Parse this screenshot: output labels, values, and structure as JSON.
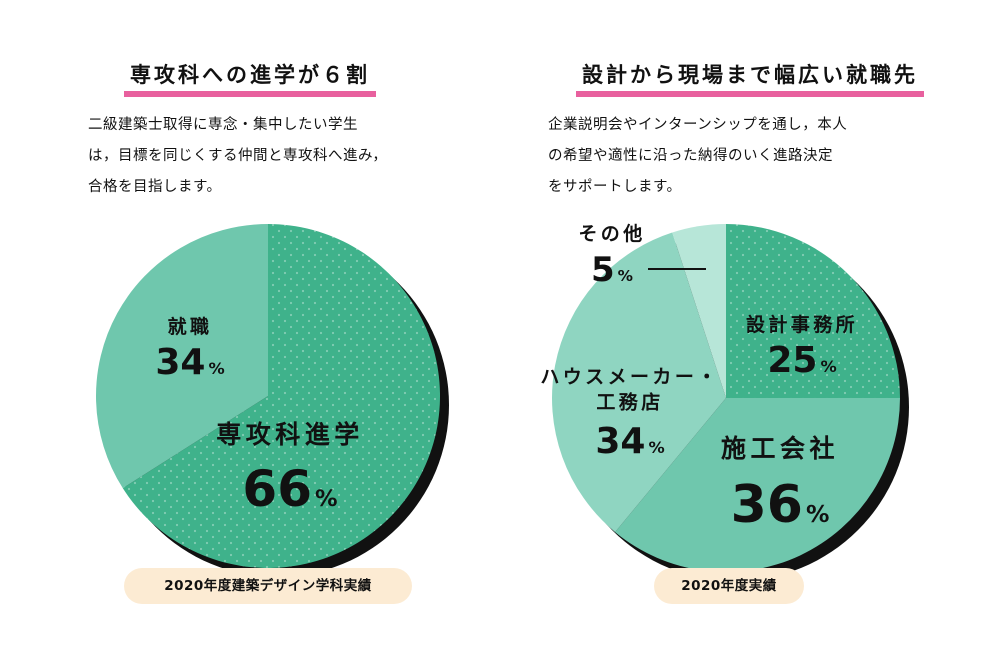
{
  "left": {
    "heading": "専攻科への進学が６割",
    "description": [
      "二級建築士取得に専念・集中したい学生",
      "は，目標を同じくする仲間と専攻科へ進み，",
      "合格を目指します。"
    ],
    "badge": "2020年度建築デザイン学科実績"
  },
  "right": {
    "heading": "設計から現場まで幅広い就職先",
    "description": [
      "企業説明会やインターンシップを通し，本人",
      "の希望や適性に沿った納得のいく進路決定",
      "をサポートします。"
    ],
    "badge": "2020年度実績"
  },
  "chart_data": [
    {
      "type": "pie",
      "title": "専攻科への進学が６割",
      "unit": "%",
      "slices": [
        {
          "label": "専攻科進学",
          "value": 66,
          "color": "#3fb28b",
          "dotted": true
        },
        {
          "label": "就職",
          "value": 34,
          "color": "#6fc7ad",
          "dotted": false
        }
      ]
    },
    {
      "type": "pie",
      "title": "設計から現場まで幅広い就職先",
      "unit": "%",
      "slices": [
        {
          "label": "設計事務所",
          "value": 25,
          "color": "#3fb28b",
          "dotted": true
        },
        {
          "label": "施工会社",
          "value": 36,
          "color": "#6fc7ad",
          "dotted": false
        },
        {
          "label": "ハウスメーカー・工務店",
          "value": 34,
          "color": "#8fd5c1",
          "dotted": false
        },
        {
          "label": "その他",
          "value": 5,
          "color": "#b7e6d8",
          "dotted": false
        }
      ]
    }
  ],
  "colors": {
    "accent_underline": "#e8609e",
    "shadow": "#111111",
    "badge_bg": "#fcebd3"
  }
}
